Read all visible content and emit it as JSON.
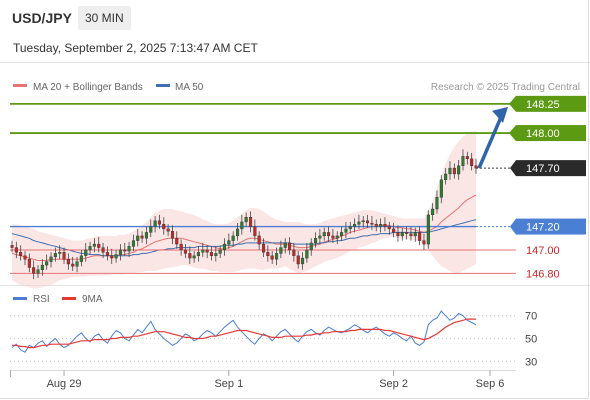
{
  "header": {
    "symbol": "USD/JPY",
    "timeframe": "30 MIN"
  },
  "timestamp": "Tuesday, September 2, 2025 7:13:47 AM CET",
  "colors": {
    "bull": "#2e7d32",
    "bear": "#c62828",
    "band": "#f8d2d2",
    "ma20": "#e57373",
    "ma50": "#3f6fb0",
    "target": "#5c9a14",
    "pivot": "#4a7fd4",
    "support": "#e57373",
    "current": "#2a2a2a",
    "arrow": "#2f64a8",
    "rsi": "#4a7fd4",
    "rsi_ma": "#e53935"
  },
  "chart_data": [
    {
      "type": "line",
      "title": "",
      "xlabel": "",
      "ylabel": "",
      "legend": [
        "MA 20 + Bollinger Bands",
        "MA 50"
      ],
      "watermark": "Research © 2025 Trading Central",
      "x_ticks": [
        "Aug 29",
        "Sep 1",
        "Sep 2",
        "Sep 6"
      ],
      "ylim": [
        146.7,
        148.3
      ],
      "levels": [
        {
          "value": 148.25,
          "label": "148.25",
          "kind": "target"
        },
        {
          "value": 148.0,
          "label": "148.00",
          "kind": "target"
        },
        {
          "value": 147.7,
          "label": "147.70",
          "kind": "current"
        },
        {
          "value": 147.2,
          "label": "147.20",
          "kind": "pivot"
        },
        {
          "value": 147.0,
          "label": "147.00",
          "kind": "support"
        },
        {
          "value": 146.8,
          "label": "146.80",
          "kind": "support"
        }
      ],
      "closes": [
        147.02,
        146.98,
        146.95,
        146.92,
        146.85,
        146.8,
        146.83,
        146.87,
        146.9,
        146.94,
        146.97,
        146.98,
        146.92,
        146.88,
        146.86,
        146.9,
        146.95,
        147.0,
        147.03,
        147.05,
        147.02,
        146.98,
        146.95,
        146.93,
        146.96,
        147.0,
        146.99,
        147.03,
        147.08,
        147.12,
        147.1,
        147.15,
        147.2,
        147.25,
        147.22,
        147.18,
        147.16,
        147.1,
        147.05,
        147.0,
        146.97,
        146.93,
        146.95,
        146.98,
        147.0,
        146.98,
        146.95,
        146.97,
        147.0,
        147.05,
        147.08,
        147.12,
        147.18,
        147.24,
        147.28,
        147.2,
        147.12,
        147.05,
        146.98,
        146.95,
        146.92,
        146.97,
        147.02,
        147.06,
        147.0,
        146.95,
        146.88,
        146.93,
        147.0,
        147.06,
        147.1,
        147.12,
        147.15,
        147.12,
        147.1,
        147.12,
        147.15,
        147.18,
        147.2,
        147.22,
        147.24,
        147.25,
        147.23,
        147.22,
        147.2,
        147.22,
        147.2,
        147.18,
        147.15,
        147.12,
        147.15,
        147.14,
        147.12,
        147.15,
        147.08,
        147.05,
        147.3,
        147.35,
        147.45,
        147.6,
        147.65,
        147.7,
        147.65,
        147.72,
        147.8,
        147.78,
        147.72,
        147.7
      ],
      "ma20": [
        146.97,
        146.96,
        146.95,
        146.94,
        146.93,
        146.92,
        146.91,
        146.91,
        146.91,
        146.92,
        146.92,
        146.92,
        146.92,
        146.92,
        146.92,
        146.92,
        146.92,
        146.93,
        146.94,
        146.95,
        146.95,
        146.95,
        146.95,
        146.95,
        146.95,
        146.96,
        146.96,
        146.97,
        146.98,
        147.0,
        147.01,
        147.03,
        147.05,
        147.07,
        147.08,
        147.09,
        147.1,
        147.1,
        147.1,
        147.1,
        147.09,
        147.08,
        147.07,
        147.06,
        147.05,
        147.04,
        147.03,
        147.02,
        147.01,
        147.01,
        147.02,
        147.03,
        147.05,
        147.07,
        147.09,
        147.1,
        147.1,
        147.09,
        147.08,
        147.07,
        147.06,
        147.05,
        147.05,
        147.05,
        147.04,
        147.03,
        147.02,
        147.02,
        147.02,
        147.03,
        147.04,
        147.05,
        147.07,
        147.08,
        147.09,
        147.1,
        147.12,
        147.13,
        147.15,
        147.16,
        147.17,
        147.18,
        147.19,
        147.2,
        147.2,
        147.21,
        147.21,
        147.21,
        147.2,
        147.19,
        147.19,
        147.18,
        147.18,
        147.17,
        147.16,
        147.15,
        147.16,
        147.18,
        147.2,
        147.24,
        147.27,
        147.3,
        147.33,
        147.36,
        147.4,
        147.43,
        147.45,
        147.47
      ],
      "ma50": [
        147.14,
        147.13,
        147.12,
        147.11,
        147.1,
        147.08,
        147.07,
        147.06,
        147.05,
        147.04,
        147.03,
        147.02,
        147.01,
        147.0,
        146.99,
        146.98,
        146.97,
        146.97,
        146.96,
        146.96,
        146.96,
        146.95,
        146.95,
        146.95,
        146.95,
        146.95,
        146.95,
        146.95,
        146.96,
        146.96,
        146.97,
        146.97,
        146.98,
        146.99,
        147.0,
        147.0,
        147.01,
        147.01,
        147.02,
        147.02,
        147.02,
        147.02,
        147.02,
        147.03,
        147.03,
        147.03,
        147.03,
        147.03,
        147.03,
        147.04,
        147.04,
        147.04,
        147.05,
        147.05,
        147.06,
        147.06,
        147.06,
        147.06,
        147.06,
        147.06,
        147.06,
        147.06,
        147.06,
        147.06,
        147.06,
        147.05,
        147.05,
        147.05,
        147.05,
        147.05,
        147.05,
        147.06,
        147.06,
        147.07,
        147.07,
        147.08,
        147.08,
        147.09,
        147.1,
        147.1,
        147.11,
        147.12,
        147.12,
        147.13,
        147.13,
        147.14,
        147.14,
        147.14,
        147.15,
        147.15,
        147.15,
        147.15,
        147.15,
        147.15,
        147.15,
        147.15,
        147.15,
        147.16,
        147.17,
        147.18,
        147.19,
        147.2,
        147.21,
        147.22,
        147.23,
        147.24,
        147.25,
        147.26
      ],
      "bb_upper": [
        147.22,
        147.22,
        147.21,
        147.2,
        147.19,
        147.18,
        147.16,
        147.15,
        147.14,
        147.13,
        147.12,
        147.11,
        147.1,
        147.09,
        147.08,
        147.08,
        147.08,
        147.09,
        147.1,
        147.11,
        147.12,
        147.12,
        147.12,
        147.12,
        147.12,
        147.13,
        147.13,
        147.14,
        147.16,
        147.18,
        147.21,
        147.24,
        147.28,
        147.32,
        147.34,
        147.35,
        147.35,
        147.35,
        147.34,
        147.33,
        147.32,
        147.31,
        147.3,
        147.28,
        147.26,
        147.25,
        147.23,
        147.22,
        147.22,
        147.22,
        147.23,
        147.25,
        147.28,
        147.31,
        147.34,
        147.36,
        147.36,
        147.35,
        147.33,
        147.3,
        147.28,
        147.26,
        147.25,
        147.24,
        147.24,
        147.24,
        147.24,
        147.23,
        147.22,
        147.22,
        147.22,
        147.23,
        147.25,
        147.26,
        147.27,
        147.28,
        147.29,
        147.3,
        147.31,
        147.32,
        147.33,
        147.34,
        147.34,
        147.34,
        147.33,
        147.32,
        147.31,
        147.3,
        147.29,
        147.28,
        147.27,
        147.27,
        147.27,
        147.27,
        147.27,
        147.27,
        147.34,
        147.42,
        147.52,
        147.64,
        147.74,
        147.82,
        147.88,
        147.93,
        147.97,
        148.0,
        148.01,
        148.02
      ],
      "bb_lower": [
        146.74,
        146.72,
        146.7,
        146.69,
        146.68,
        146.67,
        146.67,
        146.68,
        146.69,
        146.7,
        146.72,
        146.74,
        146.75,
        146.76,
        146.77,
        146.77,
        146.77,
        146.77,
        146.78,
        146.78,
        146.78,
        146.78,
        146.78,
        146.79,
        146.79,
        146.79,
        146.79,
        146.8,
        146.8,
        146.81,
        146.81,
        146.82,
        146.82,
        146.82,
        146.83,
        146.84,
        146.85,
        146.85,
        146.86,
        146.87,
        146.87,
        146.86,
        146.85,
        146.84,
        146.84,
        146.83,
        146.82,
        146.82,
        146.81,
        146.81,
        146.81,
        146.81,
        146.82,
        146.83,
        146.84,
        146.84,
        146.84,
        146.83,
        146.83,
        146.84,
        146.84,
        146.84,
        146.85,
        146.86,
        146.84,
        146.82,
        146.8,
        146.81,
        146.82,
        146.84,
        146.86,
        146.88,
        146.9,
        146.91,
        146.92,
        146.93,
        146.95,
        146.97,
        146.99,
        147.0,
        147.02,
        147.03,
        147.04,
        147.06,
        147.07,
        147.09,
        147.1,
        147.11,
        147.11,
        147.1,
        147.1,
        147.09,
        147.09,
        147.08,
        147.07,
        147.05,
        147.0,
        146.95,
        146.9,
        146.86,
        146.84,
        146.82,
        146.8,
        146.8,
        146.82,
        146.84,
        146.86,
        146.88
      ]
    },
    {
      "type": "line",
      "title": "",
      "legend": [
        "RSI",
        "9MA"
      ],
      "ylim": [
        25,
        75
      ],
      "y_ticks": [
        30,
        50,
        70
      ],
      "rsi": [
        42,
        45,
        40,
        38,
        44,
        42,
        46,
        48,
        43,
        47,
        50,
        45,
        42,
        44,
        48,
        52,
        55,
        50,
        47,
        52,
        54,
        49,
        46,
        52,
        57,
        55,
        50,
        48,
        53,
        58,
        55,
        60,
        65,
        58,
        54,
        50,
        47,
        44,
        46,
        50,
        54,
        52,
        48,
        50,
        54,
        57,
        55,
        52,
        56,
        60,
        63,
        66,
        60,
        56,
        52,
        48,
        45,
        50,
        54,
        52,
        48,
        52,
        56,
        58,
        54,
        50,
        47,
        52,
        56,
        58,
        55,
        53,
        57,
        60,
        58,
        56,
        55,
        57,
        59,
        62,
        60,
        57,
        55,
        58,
        60,
        57,
        54,
        52,
        55,
        53,
        50,
        48,
        52,
        46,
        44,
        47,
        62,
        66,
        68,
        74,
        70,
        66,
        68,
        72,
        70,
        66,
        64,
        62
      ],
      "rsi_ma": [
        44,
        44,
        43,
        43,
        42,
        42,
        43,
        44,
        44,
        45,
        45,
        45,
        45,
        45,
        46,
        47,
        48,
        48,
        48,
        49,
        49,
        49,
        49,
        50,
        50,
        51,
        51,
        51,
        52,
        52,
        53,
        54,
        55,
        56,
        56,
        56,
        55,
        54,
        53,
        52,
        51,
        51,
        50,
        50,
        50,
        51,
        52,
        52,
        53,
        54,
        55,
        56,
        57,
        57,
        57,
        56,
        55,
        54,
        53,
        52,
        51,
        51,
        51,
        52,
        52,
        52,
        52,
        52,
        53,
        53,
        54,
        54,
        55,
        55,
        56,
        56,
        56,
        56,
        57,
        57,
        58,
        58,
        58,
        58,
        58,
        58,
        57,
        57,
        56,
        55,
        54,
        53,
        52,
        51,
        50,
        49,
        50,
        52,
        54,
        57,
        60,
        62,
        64,
        65,
        66,
        67,
        67,
        67
      ]
    }
  ]
}
